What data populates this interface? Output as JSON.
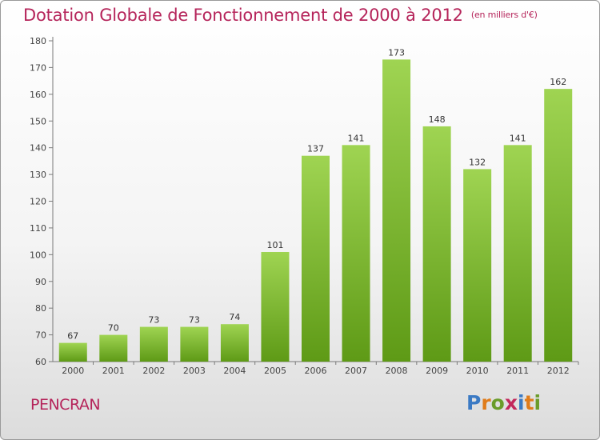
{
  "header": {
    "title": "Dotation Globale de Fonctionnement de 2000 à 2012",
    "unit": "(en milliers d'€)"
  },
  "footer": {
    "commune": "PENCRAN",
    "logo_text": "Proxiti",
    "logo_letters": [
      {
        "ch": "P",
        "color": "#3b7ac4"
      },
      {
        "ch": "r",
        "color": "#e07c1a"
      },
      {
        "ch": "o",
        "color": "#6a9c2a"
      },
      {
        "ch": "x",
        "color": "#c2285c"
      },
      {
        "ch": "i",
        "color": "#3b7ac4"
      },
      {
        "ch": "t",
        "color": "#e07c1a"
      },
      {
        "ch": "i",
        "color": "#6a9c2a"
      }
    ]
  },
  "chart_data": {
    "type": "bar",
    "title": "Dotation Globale de Fonctionnement de 2000 à 2012",
    "subtitle": "(en milliers d'€)",
    "categories": [
      "2000",
      "2001",
      "2002",
      "2003",
      "2004",
      "2005",
      "2006",
      "2007",
      "2008",
      "2009",
      "2010",
      "2011",
      "2012"
    ],
    "values": [
      67,
      70,
      73,
      73,
      74,
      101,
      137,
      141,
      173,
      148,
      132,
      141,
      162
    ],
    "ylim": [
      60,
      180
    ],
    "yticks": [
      60,
      70,
      80,
      90,
      100,
      110,
      120,
      130,
      140,
      150,
      160,
      170,
      180
    ],
    "grid": false,
    "data_labels": true,
    "colors": {
      "bar_light": "#9fd452",
      "bar_dark": "#5e9a16",
      "axis": "#7a7a7a"
    }
  }
}
